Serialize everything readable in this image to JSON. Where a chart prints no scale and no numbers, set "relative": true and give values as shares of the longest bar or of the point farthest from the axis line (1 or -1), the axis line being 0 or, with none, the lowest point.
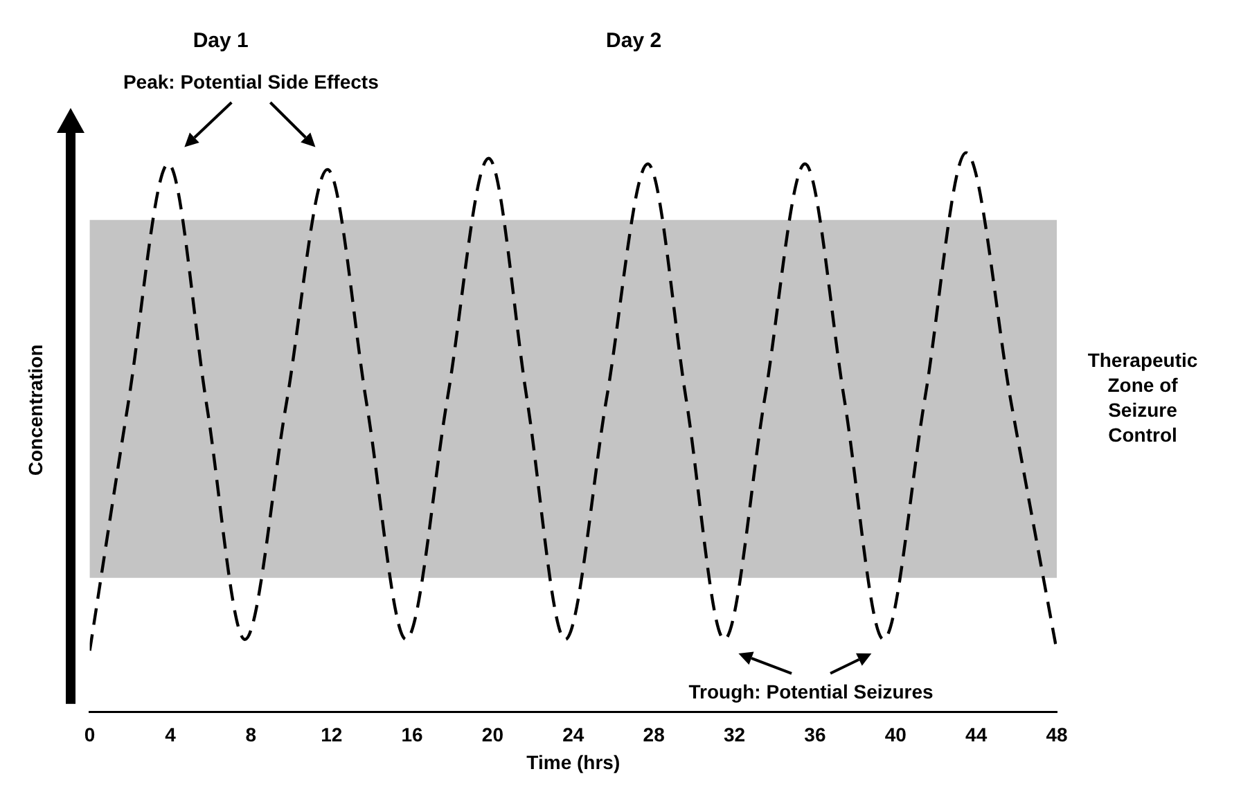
{
  "chart_data": {
    "type": "line",
    "relative": true,
    "xlabel": "Time (hrs)",
    "ylabel": "Concentration",
    "x": [
      0,
      1.9,
      3.9,
      5.8,
      7.7,
      9.75,
      11.8,
      13.75,
      15.7,
      17.75,
      19.8,
      21.7,
      23.6,
      25.65,
      27.7,
      29.6,
      31.5,
      33.5,
      35.5,
      37.45,
      39.4,
      41.45,
      43.5,
      45.75,
      48
    ],
    "series": [
      {
        "color": "#000000",
        "values": [
          0.11,
          0.55,
          0.98,
          0.55,
          0.13,
          0.55,
          0.97,
          0.55,
          0.13,
          0.56,
          0.99,
          0.56,
          0.13,
          0.56,
          0.98,
          0.56,
          0.13,
          0.56,
          0.98,
          0.56,
          0.13,
          0.56,
          1,
          0.55,
          0.11
        ]
      }
    ],
    "xlim": [
      0,
      48
    ],
    "xticks": [
      0,
      4,
      8,
      12,
      16,
      20,
      24,
      28,
      32,
      36,
      40,
      44,
      48
    ],
    "bands": [
      {
        "axis": "y",
        "from": 0.24,
        "to": 0.88,
        "label": "Therapeutic Zone of Seizure Control",
        "color": "#c4c4c4"
      }
    ],
    "annotations": [
      "Day 1",
      "Day 2",
      "Peak: Potential Side Effects",
      "Trough: Potential Seizures"
    ],
    "line_style": "dashed",
    "marker": "none",
    "grid": false,
    "legend": false
  }
}
